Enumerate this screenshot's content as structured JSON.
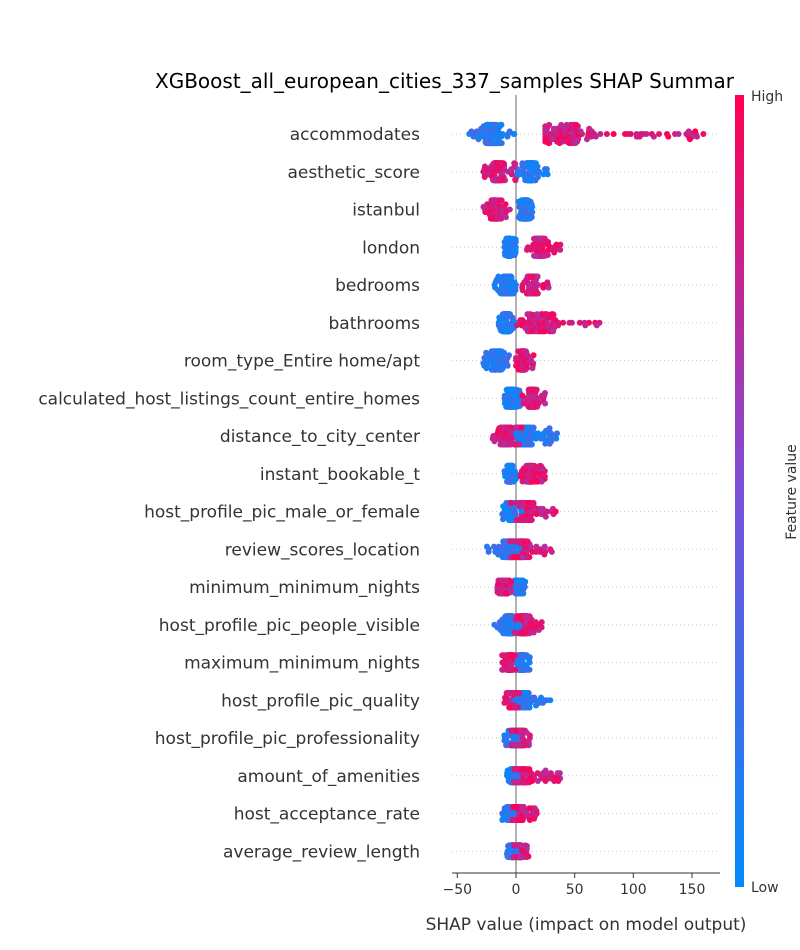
{
  "chart_data": {
    "type": "scatter",
    "subtype": "shap_beeswarm",
    "title": "XGBoost_all_european_cities_337_samples SHAP Summar",
    "xlabel": "SHAP value (impact on model output)",
    "ylabel": "",
    "xlim": [
      -55,
      172
    ],
    "xticks": [
      -50,
      0,
      50,
      100,
      150
    ],
    "xtick_labels": [
      "−50",
      "0",
      "50",
      "100",
      "150"
    ],
    "colorbar": {
      "label": "Feature value",
      "high_label": "High",
      "low_label": "Low",
      "low_color": "#008bfb",
      "mid_color": "#7c50d8",
      "high_color": "#ff0052"
    },
    "zero_line_color": "#999999",
    "features": [
      {
        "name": "accommodates",
        "low": {
          "range": [
            -40,
            0
          ],
          "center": -20
        },
        "high": {
          "range": [
            25,
            165
          ],
          "center": 40
        },
        "spread": 0.55
      },
      {
        "name": "aesthetic_score",
        "low": {
          "range": [
            0,
            28
          ],
          "center": 12
        },
        "high": {
          "range": [
            -28,
            0
          ],
          "center": -15
        },
        "spread": 0.5
      },
      {
        "name": "istanbul",
        "low": {
          "range": [
            2,
            14
          ],
          "center": 8
        },
        "high": {
          "range": [
            -28,
            -5
          ],
          "center": -17
        },
        "spread": 0.55
      },
      {
        "name": "london",
        "low": {
          "range": [
            -10,
            0
          ],
          "center": -6
        },
        "high": {
          "range": [
            8,
            38
          ],
          "center": 20
        },
        "spread": 0.5
      },
      {
        "name": "bedrooms",
        "low": {
          "range": [
            -20,
            0
          ],
          "center": -8
        },
        "high": {
          "range": [
            5,
            28
          ],
          "center": 14
        },
        "spread": 0.5
      },
      {
        "name": "bathrooms",
        "low": {
          "range": [
            -15,
            0
          ],
          "center": -8
        },
        "high": {
          "range": [
            0,
            80
          ],
          "center": 20
        },
        "spread": 0.5
      },
      {
        "name": "room_type_Entire home/apt",
        "low": {
          "range": [
            -28,
            -4
          ],
          "center": -16
        },
        "high": {
          "range": [
            0,
            15
          ],
          "center": 6
        },
        "spread": 0.55
      },
      {
        "name": "calculated_host_listings_count_entire_homes",
        "low": {
          "range": [
            -10,
            5
          ],
          "center": -4
        },
        "high": {
          "range": [
            5,
            25
          ],
          "center": 14
        },
        "spread": 0.5
      },
      {
        "name": "distance_to_city_center",
        "low": {
          "range": [
            -5,
            37
          ],
          "center": 8
        },
        "high": {
          "range": [
            -20,
            5
          ],
          "center": -8
        },
        "spread": 0.5
      },
      {
        "name": "instant_bookable_t",
        "low": {
          "range": [
            -10,
            0
          ],
          "center": -5
        },
        "high": {
          "range": [
            3,
            25
          ],
          "center": 12
        },
        "spread": 0.45
      },
      {
        "name": "host_profile_pic_male_or_female",
        "low": {
          "range": [
            -12,
            10
          ],
          "center": -3
        },
        "high": {
          "range": [
            -5,
            35
          ],
          "center": 8
        },
        "spread": 0.5
      },
      {
        "name": "review_scores_location",
        "low": {
          "range": [
            -28,
            5
          ],
          "center": -5
        },
        "high": {
          "range": [
            -5,
            33
          ],
          "center": 5
        },
        "spread": 0.45
      },
      {
        "name": "minimum_minimum_nights",
        "low": {
          "range": [
            -2,
            8
          ],
          "center": 3
        },
        "high": {
          "range": [
            -16,
            -4
          ],
          "center": -10
        },
        "spread": 0.35
      },
      {
        "name": "host_profile_pic_people_visible",
        "low": {
          "range": [
            -20,
            5
          ],
          "center": -6
        },
        "high": {
          "range": [
            -2,
            22
          ],
          "center": 6
        },
        "spread": 0.5
      },
      {
        "name": "maximum_minimum_nights",
        "low": {
          "range": [
            -2,
            12
          ],
          "center": 5
        },
        "high": {
          "range": [
            -12,
            0
          ],
          "center": -5
        },
        "spread": 0.4
      },
      {
        "name": "host_profile_pic_quality",
        "low": {
          "range": [
            -2,
            30
          ],
          "center": 4
        },
        "high": {
          "range": [
            -10,
            5
          ],
          "center": -3
        },
        "spread": 0.4
      },
      {
        "name": "host_profile_pic_professionality",
        "low": {
          "range": [
            -10,
            5
          ],
          "center": -2
        },
        "high": {
          "range": [
            -4,
            13
          ],
          "center": 4
        },
        "spread": 0.4
      },
      {
        "name": "amount_of_amenities",
        "low": {
          "range": [
            -8,
            5
          ],
          "center": -2
        },
        "high": {
          "range": [
            -2,
            38
          ],
          "center": 6
        },
        "spread": 0.35
      },
      {
        "name": "host_acceptance_rate",
        "low": {
          "range": [
            -12,
            2
          ],
          "center": -4
        },
        "high": {
          "range": [
            -3,
            18
          ],
          "center": 2
        },
        "spread": 0.35
      },
      {
        "name": "average_review_length",
        "low": {
          "range": [
            -8,
            3
          ],
          "center": -3
        },
        "high": {
          "range": [
            -2,
            11
          ],
          "center": 3
        },
        "spread": 0.3
      }
    ]
  }
}
